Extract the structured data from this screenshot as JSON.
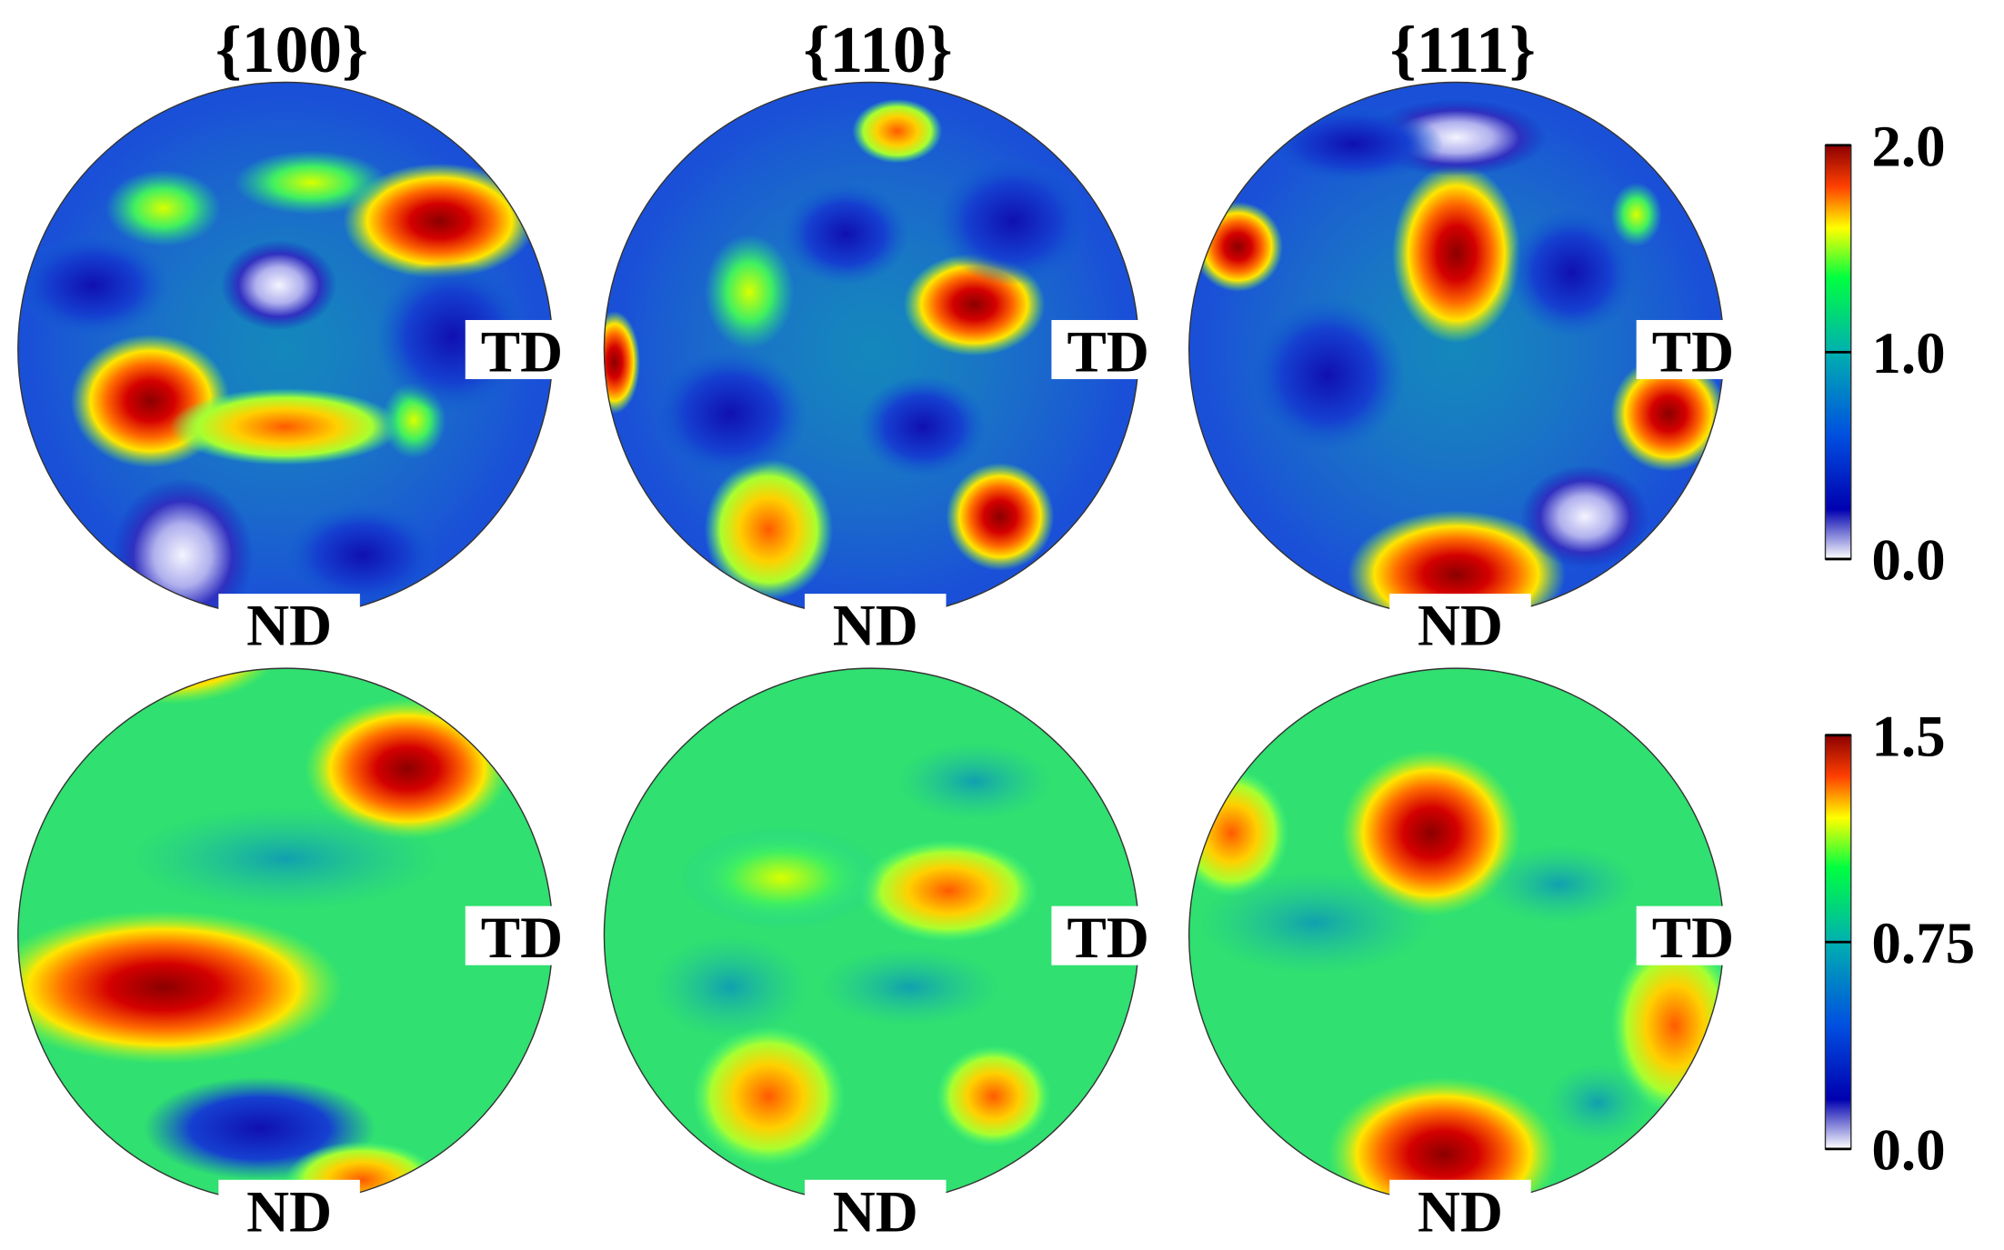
{
  "columns": [
    "{100}",
    "{110}",
    "{111}"
  ],
  "axis_labels": {
    "td": "TD",
    "nd": "ND"
  },
  "colorbars": [
    {
      "ticks": [
        {
          "value": 0,
          "label": "0.0"
        },
        {
          "value": 1,
          "label": "1.0"
        },
        {
          "value": 2,
          "label": "2.0"
        }
      ]
    },
    {
      "ticks": [
        {
          "value": 0,
          "label": "0.0"
        },
        0.75,
        {
          "value": 1.5,
          "label": "1.5"
        }
      ]
    }
  ]
}
